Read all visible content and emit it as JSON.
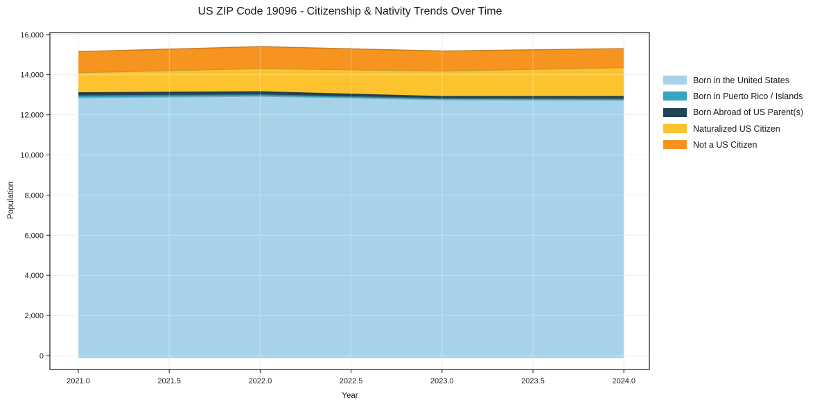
{
  "chart_data": {
    "type": "area",
    "stacked": true,
    "title": "US ZIP Code 19096 - Citizenship & Nativity Trends Over Time",
    "xlabel": "Year",
    "ylabel": "Population",
    "x": [
      2021,
      2022,
      2023,
      2024
    ],
    "x_ticks": [
      2021.0,
      2021.5,
      2022.0,
      2022.5,
      2023.0,
      2023.5,
      2024.0
    ],
    "x_tick_labels": [
      "2021.0",
      "2021.5",
      "2022.0",
      "2022.5",
      "2023.0",
      "2023.5",
      "2024.0"
    ],
    "y_ticks": [
      0,
      2000,
      4000,
      6000,
      8000,
      10000,
      12000,
      14000,
      16000
    ],
    "y_tick_labels": [
      "0",
      "2,000",
      "4,000",
      "6,000",
      "8,000",
      "10,000",
      "12,000",
      "14,000",
      "16,000"
    ],
    "xlim": [
      2020.85,
      2024.14
    ],
    "ylim": [
      -650,
      16100
    ],
    "grid": true,
    "legend_position": "right",
    "series": [
      {
        "name": "Born in the United States",
        "color": "#A6D3E9",
        "values": [
          12850,
          12920,
          12750,
          12720
        ]
      },
      {
        "name": "Born in Puerto Rico / Islands",
        "color": "#36A3BF",
        "values": [
          100,
          80,
          60,
          70
        ]
      },
      {
        "name": "Born Abroad of US Parent(s)",
        "color": "#1F4456",
        "values": [
          150,
          150,
          100,
          120
        ]
      },
      {
        "name": "Naturalized US Citizen",
        "color": "#FDC32F",
        "values": [
          1000,
          1150,
          1270,
          1440
        ]
      },
      {
        "name": "Not a US Citizen",
        "color": "#F7941F",
        "values": [
          1050,
          1100,
          1000,
          950
        ]
      }
    ],
    "stack_totals": [
      15150,
      15400,
      15180,
      15300
    ]
  }
}
